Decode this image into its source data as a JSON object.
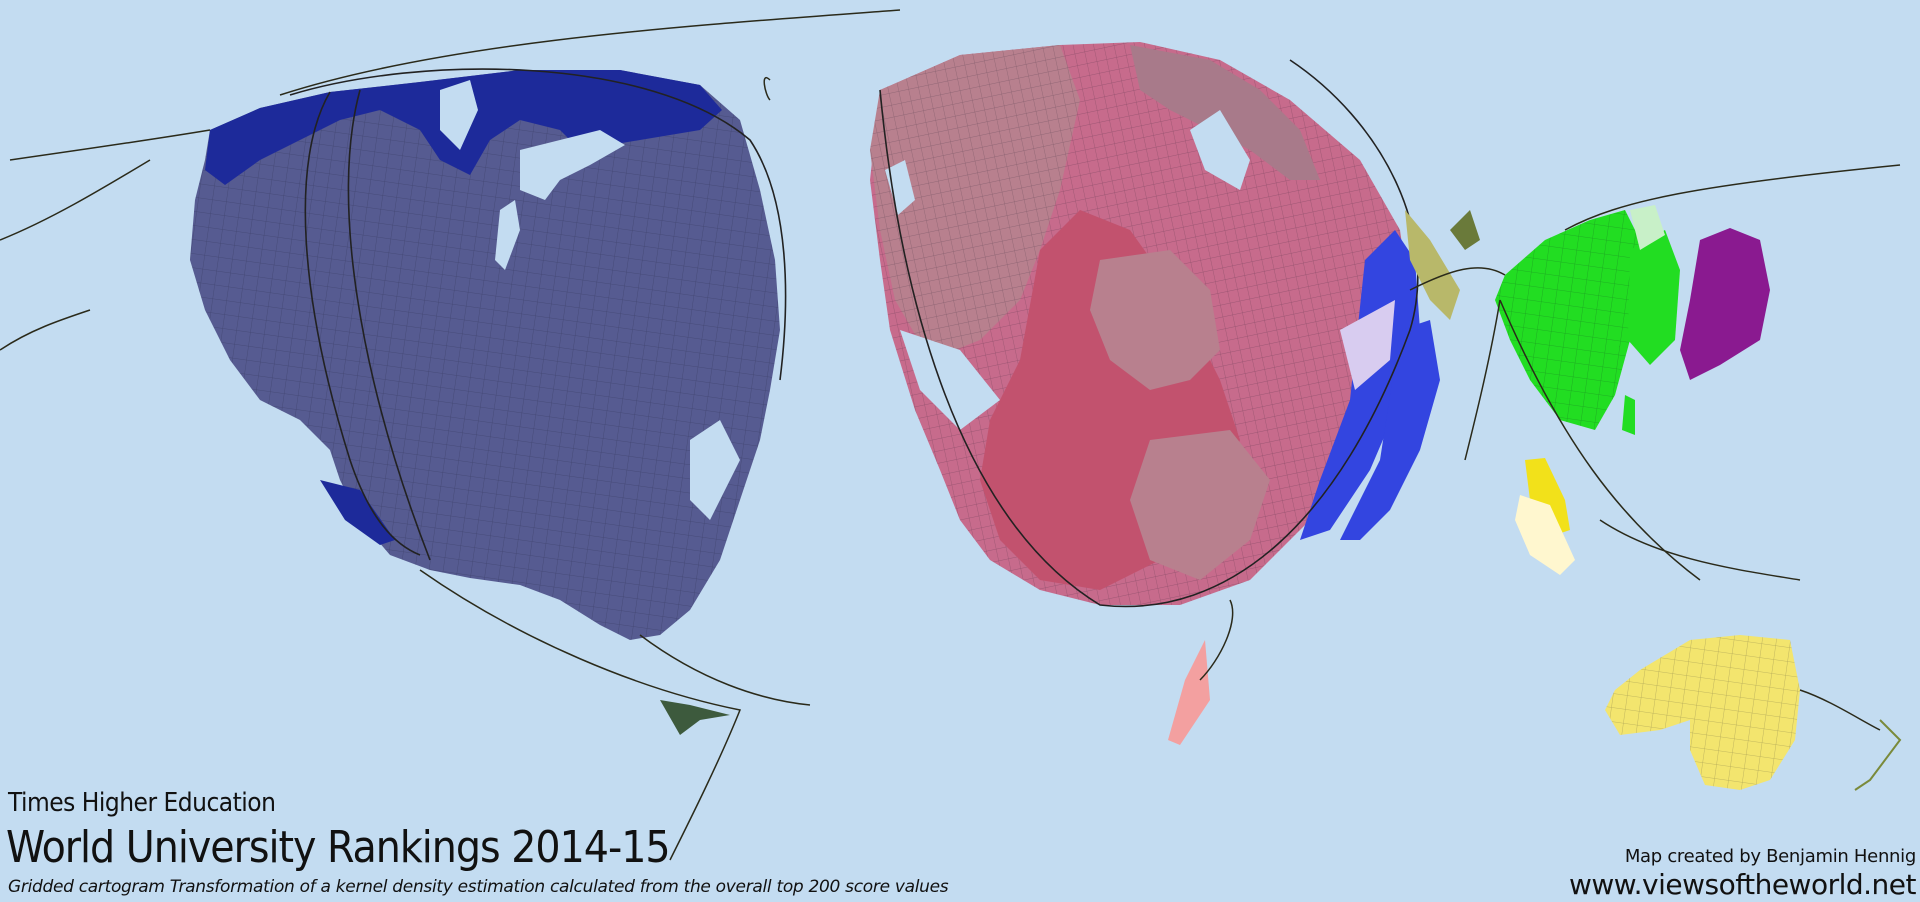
{
  "map": {
    "publisher": "Times Higher Education",
    "title": "World University Rankings 2014-15",
    "subtitle": "Gridded cartogram Transformation of a kernel density estimation calculated from the overall top 200 score values",
    "credit": "Map created by Benjamin Hennig",
    "website": "www.viewsoftheworld.net",
    "colors": {
      "ocean": "#c3dcf1",
      "north_america": "#565b91",
      "canada_edges": "#1d2a9a",
      "europe_main": "#c2526e",
      "europe_light": "#b8808e",
      "europe_pink": "#c76b8c",
      "scandinavia": "#a87a8a",
      "russia_strip": "#3345e0",
      "east_asia": "#22dd22",
      "korea_japan": "#8a1a90",
      "southeast_asia": "#f2e11a",
      "australia": "#f3e56e",
      "middle_east": "#b8b86a",
      "new_zealand": "#f3a0a0"
    }
  }
}
